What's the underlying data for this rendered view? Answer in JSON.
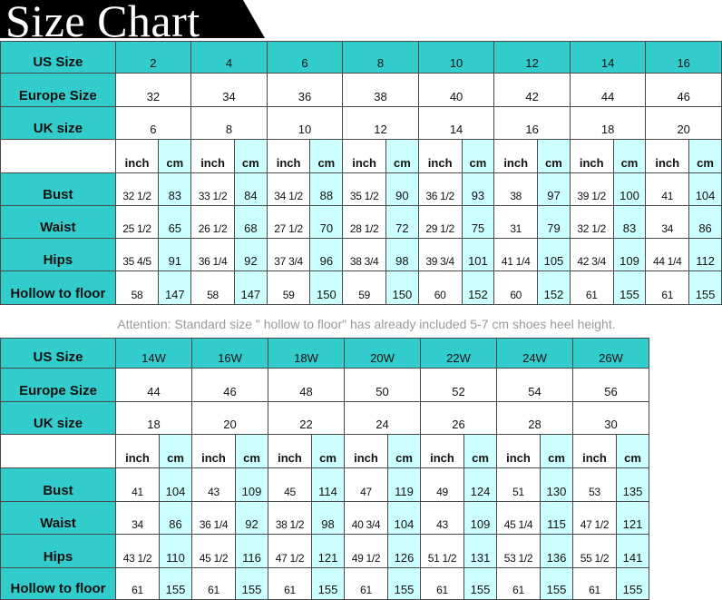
{
  "title": "Size Chart",
  "colors": {
    "header_teal": "#33cccc",
    "cm_column": "#ccffff",
    "border": "#4a4a4a",
    "attention_text": "#9a9a9a"
  },
  "labels": {
    "us": "US Size",
    "europe": "Europe Size",
    "uk": "UK size",
    "bust": "Bust",
    "waist": "Waist",
    "hips": "Hips",
    "hollow": "Hollow to floor",
    "inch": "inch",
    "cm": "cm"
  },
  "attention": "Attention: Standard size \" hollow to floor\" has already included 5-7 cm shoes heel height.",
  "tables": [
    {
      "us": [
        "2",
        "4",
        "6",
        "8",
        "10",
        "12",
        "14",
        "16"
      ],
      "europe": [
        "32",
        "34",
        "36",
        "38",
        "40",
        "42",
        "44",
        "46"
      ],
      "uk": [
        "6",
        "8",
        "10",
        "12",
        "14",
        "16",
        "18",
        "20"
      ],
      "bust": [
        [
          "32 1/2",
          "83"
        ],
        [
          "33 1/2",
          "84"
        ],
        [
          "34 1/2",
          "88"
        ],
        [
          "35 1/2",
          "90"
        ],
        [
          "36 1/2",
          "93"
        ],
        [
          "38",
          "97"
        ],
        [
          "39 1/2",
          "100"
        ],
        [
          "41",
          "104"
        ]
      ],
      "waist": [
        [
          "25 1/2",
          "65"
        ],
        [
          "26 1/2",
          "68"
        ],
        [
          "27 1/2",
          "70"
        ],
        [
          "28 1/2",
          "72"
        ],
        [
          "29 1/2",
          "75"
        ],
        [
          "31",
          "79"
        ],
        [
          "32 1/2",
          "83"
        ],
        [
          "34",
          "86"
        ]
      ],
      "hips": [
        [
          "35 4/5",
          "91"
        ],
        [
          "36 1/4",
          "92"
        ],
        [
          "37 3/4",
          "96"
        ],
        [
          "38 3/4",
          "98"
        ],
        [
          "39 3/4",
          "101"
        ],
        [
          "41 1/4",
          "105"
        ],
        [
          "42 3/4",
          "109"
        ],
        [
          "44 1/4",
          "112"
        ]
      ],
      "hollow": [
        [
          "58",
          "147"
        ],
        [
          "58",
          "147"
        ],
        [
          "59",
          "150"
        ],
        [
          "59",
          "150"
        ],
        [
          "60",
          "152"
        ],
        [
          "60",
          "152"
        ],
        [
          "61",
          "155"
        ],
        [
          "61",
          "155"
        ]
      ]
    },
    {
      "us": [
        "14W",
        "16W",
        "18W",
        "20W",
        "22W",
        "24W",
        "26W"
      ],
      "europe": [
        "44",
        "46",
        "48",
        "50",
        "52",
        "54",
        "56"
      ],
      "uk": [
        "18",
        "20",
        "22",
        "24",
        "26",
        "28",
        "30"
      ],
      "bust": [
        [
          "41",
          "104"
        ],
        [
          "43",
          "109"
        ],
        [
          "45",
          "114"
        ],
        [
          "47",
          "119"
        ],
        [
          "49",
          "124"
        ],
        [
          "51",
          "130"
        ],
        [
          "53",
          "135"
        ]
      ],
      "waist": [
        [
          "34",
          "86"
        ],
        [
          "36 1/4",
          "92"
        ],
        [
          "38 1/2",
          "98"
        ],
        [
          "40 3/4",
          "104"
        ],
        [
          "43",
          "109"
        ],
        [
          "45 1/4",
          "115"
        ],
        [
          "47 1/2",
          "121"
        ]
      ],
      "hips": [
        [
          "43 1/2",
          "110"
        ],
        [
          "45 1/2",
          "116"
        ],
        [
          "47 1/2",
          "121"
        ],
        [
          "49 1/2",
          "126"
        ],
        [
          "51 1/2",
          "131"
        ],
        [
          "53 1/2",
          "136"
        ],
        [
          "55 1/2",
          "141"
        ]
      ],
      "hollow": [
        [
          "61",
          "155"
        ],
        [
          "61",
          "155"
        ],
        [
          "61",
          "155"
        ],
        [
          "61",
          "155"
        ],
        [
          "61",
          "155"
        ],
        [
          "61",
          "155"
        ],
        [
          "61",
          "155"
        ]
      ]
    }
  ]
}
